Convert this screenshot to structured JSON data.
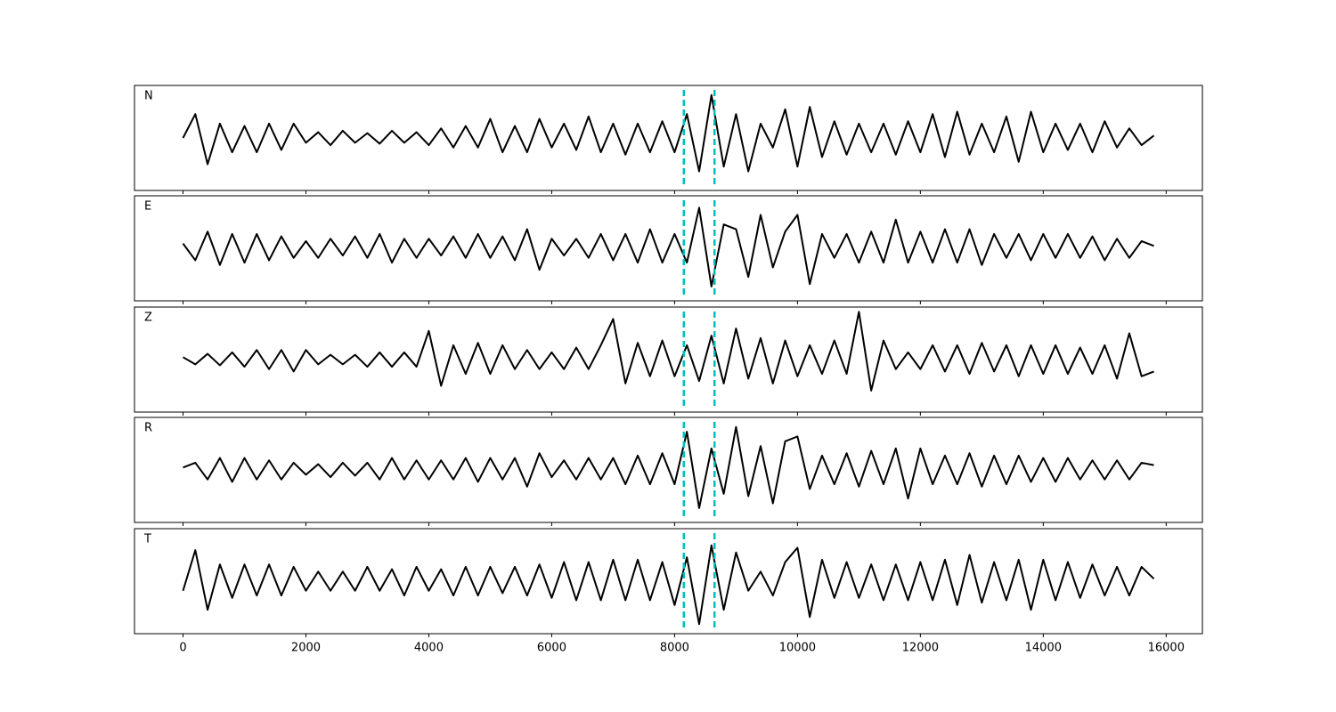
{
  "chart_data": [
    {
      "type": "line",
      "title": "N",
      "color": "#000000",
      "xlim": [
        -790,
        16590
      ],
      "ylim": [
        -1.1,
        1.1
      ],
      "xticks": [
        0,
        2000,
        4000,
        6000,
        8000,
        10000,
        12000,
        14000,
        16000
      ],
      "vlines": [
        8150,
        8650
      ],
      "vline_color": "#00bfbf",
      "x": [
        0,
        200,
        400,
        600,
        800,
        1000,
        1200,
        1400,
        1600,
        1800,
        2000,
        2200,
        2400,
        2600,
        2800,
        3000,
        3200,
        3400,
        3600,
        3800,
        4000,
        4200,
        4400,
        4600,
        4800,
        5000,
        5200,
        5400,
        5600,
        5800,
        6000,
        6200,
        6400,
        6600,
        6800,
        7000,
        7200,
        7400,
        7600,
        7800,
        8000,
        8200,
        8400,
        8600,
        8800,
        9000,
        9200,
        9400,
        9600,
        9800,
        10000,
        10200,
        10400,
        10600,
        10800,
        11000,
        11200,
        11400,
        11600,
        11800,
        12000,
        12200,
        12400,
        12600,
        12800,
        13000,
        13200,
        13400,
        13600,
        13800,
        14000,
        14200,
        14400,
        14600,
        14800,
        15000,
        15200,
        15400,
        15600,
        15800
      ],
      "values": [
        0,
        0.5,
        -0.55,
        0.3,
        -0.3,
        0.25,
        -0.3,
        0.3,
        -0.25,
        0.3,
        -0.1,
        0.12,
        -0.15,
        0.15,
        -0.1,
        0.1,
        -0.12,
        0.15,
        -0.1,
        0.12,
        -0.15,
        0.2,
        -0.2,
        0.25,
        -0.2,
        0.4,
        -0.3,
        0.25,
        -0.3,
        0.4,
        -0.2,
        0.3,
        -0.25,
        0.45,
        -0.3,
        0.3,
        -0.35,
        0.3,
        -0.3,
        0.35,
        -0.3,
        0.5,
        -0.7,
        0.9,
        -0.6,
        0.5,
        -0.7,
        0.3,
        -0.2,
        0.6,
        -0.6,
        0.65,
        -0.4,
        0.35,
        -0.35,
        0.3,
        -0.3,
        0.3,
        -0.35,
        0.35,
        -0.3,
        0.5,
        -0.4,
        0.55,
        -0.35,
        0.3,
        -0.3,
        0.45,
        -0.5,
        0.55,
        -0.3,
        0.3,
        -0.25,
        0.3,
        -0.3,
        0.35,
        -0.2,
        0.2,
        -0.15,
        0.05
      ]
    },
    {
      "type": "line",
      "title": "E",
      "color": "#000000",
      "xlim": [
        -790,
        16590
      ],
      "ylim": [
        -1.1,
        1.1
      ],
      "xticks": [
        0,
        2000,
        4000,
        6000,
        8000,
        10000,
        12000,
        14000,
        16000
      ],
      "vlines": [
        8150,
        8650
      ],
      "vline_color": "#00bfbf",
      "x": [
        0,
        200,
        400,
        600,
        800,
        1000,
        1200,
        1400,
        1600,
        1800,
        2000,
        2200,
        2400,
        2600,
        2800,
        3000,
        3200,
        3400,
        3600,
        3800,
        4000,
        4200,
        4400,
        4600,
        4800,
        5000,
        5200,
        5400,
        5600,
        5800,
        6000,
        6200,
        6400,
        6600,
        6800,
        7000,
        7200,
        7400,
        7600,
        7800,
        8000,
        8200,
        8400,
        8600,
        8800,
        9000,
        9200,
        9400,
        9600,
        9800,
        10000,
        10200,
        10400,
        10600,
        10800,
        11000,
        11200,
        11400,
        11600,
        11800,
        12000,
        12200,
        12400,
        12600,
        12800,
        13000,
        13200,
        13400,
        13600,
        13800,
        14000,
        14200,
        14400,
        14600,
        14800,
        15000,
        15200,
        15400,
        15600,
        15800
      ],
      "values": [
        0.1,
        -0.25,
        0.35,
        -0.35,
        0.3,
        -0.3,
        0.3,
        -0.25,
        0.25,
        -0.2,
        0.15,
        -0.2,
        0.2,
        -0.15,
        0.25,
        -0.2,
        0.3,
        -0.3,
        0.2,
        -0.2,
        0.2,
        -0.15,
        0.25,
        -0.2,
        0.3,
        -0.2,
        0.25,
        -0.25,
        0.4,
        -0.45,
        0.2,
        -0.15,
        0.2,
        -0.2,
        0.3,
        -0.25,
        0.3,
        -0.3,
        0.4,
        -0.3,
        0.3,
        -0.3,
        0.85,
        -0.8,
        0.5,
        0.4,
        -0.6,
        0.7,
        -0.4,
        0.35,
        0.7,
        -0.75,
        0.3,
        -0.2,
        0.3,
        -0.3,
        0.35,
        -0.3,
        0.6,
        -0.3,
        0.35,
        -0.3,
        0.4,
        -0.3,
        0.4,
        -0.35,
        0.3,
        -0.2,
        0.3,
        -0.25,
        0.3,
        -0.2,
        0.3,
        -0.2,
        0.25,
        -0.25,
        0.2,
        -0.2,
        0.15,
        0.05
      ]
    },
    {
      "type": "line",
      "title": "Z",
      "color": "#000000",
      "xlim": [
        -790,
        16590
      ],
      "ylim": [
        -1.1,
        1.1
      ],
      "xticks": [
        0,
        2000,
        4000,
        6000,
        8000,
        10000,
        12000,
        14000,
        16000
      ],
      "vlines": [
        8150,
        8650
      ],
      "vline_color": "#00bfbf",
      "x": [
        0,
        200,
        400,
        600,
        800,
        1000,
        1200,
        1400,
        1600,
        1800,
        2000,
        2200,
        2400,
        2600,
        2800,
        3000,
        3200,
        3400,
        3600,
        3800,
        4000,
        4200,
        4400,
        4600,
        4800,
        5000,
        5200,
        5400,
        5600,
        5800,
        6000,
        6200,
        6400,
        6600,
        6800,
        7000,
        7200,
        7400,
        7600,
        7800,
        8000,
        8200,
        8400,
        8600,
        8800,
        9000,
        9200,
        9400,
        9600,
        9800,
        10000,
        10200,
        10400,
        10600,
        10800,
        11000,
        11200,
        11400,
        11600,
        11800,
        12000,
        12200,
        12400,
        12600,
        12800,
        13000,
        13200,
        13400,
        13600,
        13800,
        14000,
        14200,
        14400,
        14600,
        14800,
        15000,
        15200,
        15400,
        15600,
        15800
      ],
      "values": [
        0.05,
        -0.1,
        0.12,
        -0.12,
        0.15,
        -0.15,
        0.2,
        -0.2,
        0.2,
        -0.25,
        0.2,
        -0.1,
        0.1,
        -0.1,
        0.1,
        -0.15,
        0.15,
        -0.15,
        0.15,
        -0.15,
        0.6,
        -0.55,
        0.3,
        -0.3,
        0.35,
        -0.3,
        0.3,
        -0.2,
        0.2,
        -0.2,
        0.15,
        -0.2,
        0.25,
        -0.2,
        0.3,
        0.85,
        -0.5,
        0.35,
        -0.35,
        0.4,
        -0.35,
        0.3,
        -0.45,
        0.5,
        -0.5,
        0.65,
        -0.4,
        0.45,
        -0.5,
        0.4,
        -0.35,
        0.3,
        -0.3,
        0.4,
        -0.3,
        1.0,
        -0.65,
        0.4,
        -0.2,
        0.15,
        -0.2,
        0.3,
        -0.25,
        0.3,
        -0.3,
        0.35,
        -0.25,
        0.3,
        -0.35,
        0.3,
        -0.3,
        0.3,
        -0.3,
        0.25,
        -0.3,
        0.3,
        -0.4,
        0.55,
        -0.35,
        -0.25
      ]
    },
    {
      "type": "line",
      "title": "R",
      "color": "#000000",
      "xlim": [
        -790,
        16590
      ],
      "ylim": [
        -1.1,
        1.1
      ],
      "xticks": [
        0,
        2000,
        4000,
        6000,
        8000,
        10000,
        12000,
        14000,
        16000
      ],
      "vlines": [
        8150,
        8650
      ],
      "vline_color": "#00bfbf",
      "x": [
        0,
        200,
        400,
        600,
        800,
        1000,
        1200,
        1400,
        1600,
        1800,
        2000,
        2200,
        2400,
        2600,
        2800,
        3000,
        3200,
        3400,
        3600,
        3800,
        4000,
        4200,
        4400,
        4600,
        4800,
        5000,
        5200,
        5400,
        5600,
        5800,
        6000,
        6200,
        6400,
        6600,
        6800,
        7000,
        7200,
        7400,
        7600,
        7800,
        8000,
        8200,
        8400,
        8600,
        8800,
        9000,
        9200,
        9400,
        9600,
        9800,
        10000,
        10200,
        10400,
        10600,
        10800,
        11000,
        11200,
        11400,
        11600,
        11800,
        12000,
        12200,
        12400,
        12600,
        12800,
        13000,
        13200,
        13400,
        13600,
        13800,
        14000,
        14200,
        14400,
        14600,
        14800,
        15000,
        15200,
        15400,
        15600,
        15800
      ],
      "values": [
        0.05,
        0.15,
        -0.2,
        0.25,
        -0.25,
        0.25,
        -0.2,
        0.2,
        -0.2,
        0.15,
        -0.1,
        0.12,
        -0.15,
        0.15,
        -0.12,
        0.15,
        -0.2,
        0.25,
        -0.2,
        0.2,
        -0.2,
        0.2,
        -0.2,
        0.25,
        -0.25,
        0.25,
        -0.2,
        0.25,
        -0.35,
        0.35,
        -0.15,
        0.2,
        -0.2,
        0.25,
        -0.2,
        0.25,
        -0.3,
        0.3,
        -0.3,
        0.35,
        -0.3,
        0.8,
        -0.8,
        0.45,
        -0.5,
        0.9,
        -0.55,
        0.5,
        -0.7,
        0.6,
        0.7,
        -0.4,
        0.3,
        -0.3,
        0.35,
        -0.35,
        0.4,
        -0.3,
        0.45,
        -0.6,
        0.45,
        -0.3,
        0.3,
        -0.3,
        0.35,
        -0.35,
        0.3,
        -0.3,
        0.3,
        -0.25,
        0.25,
        -0.25,
        0.25,
        -0.2,
        0.2,
        -0.2,
        0.2,
        -0.2,
        0.15,
        0.1
      ]
    },
    {
      "type": "line",
      "title": "T",
      "color": "#000000",
      "xlim": [
        -790,
        16590
      ],
      "ylim": [
        -1.1,
        1.1
      ],
      "xticks": [
        0,
        2000,
        4000,
        6000,
        8000,
        10000,
        12000,
        14000,
        16000
      ],
      "vlines": [
        8150,
        8650
      ],
      "vline_color": "#00bfbf",
      "x": [
        0,
        200,
        400,
        600,
        800,
        1000,
        1200,
        1400,
        1600,
        1800,
        2000,
        2200,
        2400,
        2600,
        2800,
        3000,
        3200,
        3400,
        3600,
        3800,
        4000,
        4200,
        4400,
        4600,
        4800,
        5000,
        5200,
        5400,
        5600,
        5800,
        6000,
        6200,
        6400,
        6600,
        6800,
        7000,
        7200,
        7400,
        7600,
        7800,
        8000,
        8200,
        8400,
        8600,
        8800,
        9000,
        9200,
        9400,
        9600,
        9800,
        10000,
        10200,
        10400,
        10600,
        10800,
        11000,
        11200,
        11400,
        11600,
        11800,
        12000,
        12200,
        12400,
        12600,
        12800,
        13000,
        13200,
        13400,
        13600,
        13800,
        14000,
        14200,
        14400,
        14600,
        14800,
        15000,
        15200,
        15400,
        15600,
        15800
      ],
      "values": [
        -0.2,
        0.65,
        -0.6,
        0.35,
        -0.35,
        0.35,
        -0.3,
        0.35,
        -0.3,
        0.3,
        -0.2,
        0.2,
        -0.2,
        0.2,
        -0.2,
        0.3,
        -0.2,
        0.25,
        -0.3,
        0.3,
        -0.2,
        0.25,
        -0.3,
        0.3,
        -0.3,
        0.3,
        -0.25,
        0.3,
        -0.3,
        0.35,
        -0.35,
        0.4,
        -0.4,
        0.4,
        -0.4,
        0.45,
        -0.4,
        0.45,
        -0.4,
        0.4,
        -0.5,
        0.5,
        -0.9,
        0.75,
        -0.6,
        0.6,
        -0.2,
        0.2,
        -0.3,
        0.4,
        0.7,
        -0.75,
        0.45,
        -0.35,
        0.4,
        -0.35,
        0.35,
        -0.4,
        0.35,
        -0.4,
        0.4,
        -0.4,
        0.45,
        -0.5,
        0.55,
        -0.45,
        0.4,
        -0.4,
        0.45,
        -0.6,
        0.45,
        -0.4,
        0.4,
        -0.35,
        0.35,
        -0.3,
        0.3,
        -0.3,
        0.3,
        0.05
      ]
    }
  ]
}
